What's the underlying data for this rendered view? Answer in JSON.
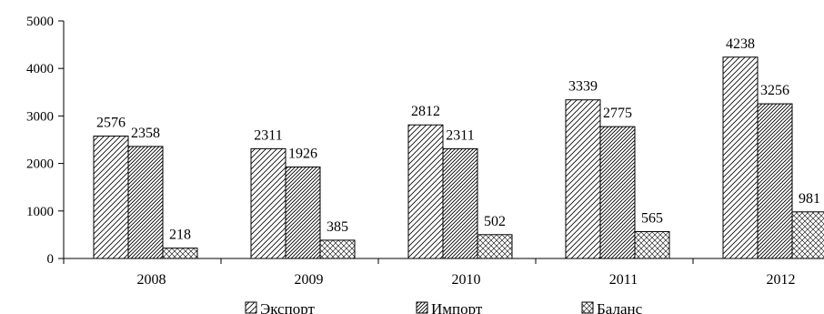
{
  "chart_data": {
    "type": "bar",
    "categories": [
      "2008",
      "2009",
      "2010",
      "2011",
      "2012"
    ],
    "series": [
      {
        "name": "Экспорт",
        "values": [
          2576,
          2311,
          2812,
          3339,
          4238
        ],
        "pattern": "diag-wide"
      },
      {
        "name": "Импорт",
        "values": [
          2358,
          1926,
          2311,
          2775,
          3256
        ],
        "pattern": "diag-dense"
      },
      {
        "name": "Баланс",
        "values": [
          218,
          385,
          502,
          565,
          981
        ],
        "pattern": "cross"
      }
    ],
    "data_labels": [
      [
        "2576",
        "2311",
        "2812",
        "3339",
        "4238"
      ],
      [
        "2358",
        "1926",
        "2311",
        "2775",
        "3256"
      ],
      [
        "218",
        "385",
        "502",
        "565",
        "981"
      ]
    ],
    "y_ticks": [
      0,
      1000,
      2000,
      3000,
      4000,
      5000
    ],
    "y_tick_labels": [
      "0",
      "1000",
      "2000",
      "3000",
      "4000",
      "5000"
    ],
    "ylim": [
      0,
      5000
    ],
    "grid": false,
    "legend_position": "bottom",
    "title": "",
    "xlabel": "",
    "ylabel": ""
  }
}
